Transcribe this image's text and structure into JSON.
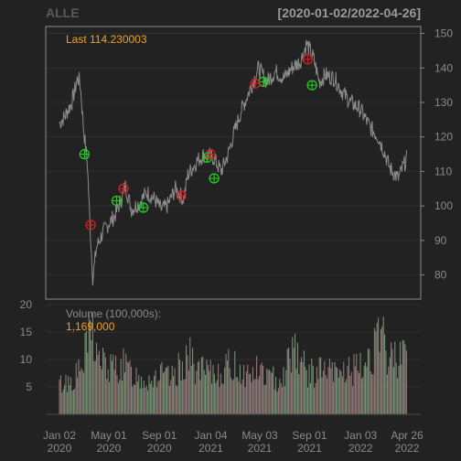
{
  "chart_data": [
    {
      "type": "line",
      "title": "ALLE",
      "date_range": "[2020-01-02/2022-04-26]",
      "last_label": "Last 114.230003",
      "ylim": [
        73,
        152
      ],
      "y_ticks": [
        80,
        90,
        100,
        110,
        120,
        130,
        140,
        150
      ],
      "x_ticks": [
        {
          "line1": "Jan 02",
          "line2": "2020",
          "date": "2020-01-02"
        },
        {
          "line1": "May 01",
          "line2": "2020",
          "date": "2020-05-01"
        },
        {
          "line1": "Sep 01",
          "line2": "2020",
          "date": "2020-09-01"
        },
        {
          "line1": "Jan 04",
          "line2": "2021",
          "date": "2021-01-04"
        },
        {
          "line1": "May 03",
          "line2": "2021",
          "date": "2021-05-03"
        },
        {
          "line1": "Sep 01",
          "line2": "2021",
          "date": "2021-09-01"
        },
        {
          "line1": "Jan 03",
          "line2": "2022",
          "date": "2022-01-03"
        },
        {
          "line1": "Apr 26",
          "line2": "2022",
          "date": "2022-04-26"
        }
      ],
      "price_series": [
        [
          "2020-01-02",
          124
        ],
        [
          "2020-01-15",
          126
        ],
        [
          "2020-02-01",
          130
        ],
        [
          "2020-02-15",
          137
        ],
        [
          "2020-02-21",
          136
        ],
        [
          "2020-03-01",
          122
        ],
        [
          "2020-03-10",
          112
        ],
        [
          "2020-03-16",
          95
        ],
        [
          "2020-03-23",
          79
        ],
        [
          "2020-04-01",
          88
        ],
        [
          "2020-04-15",
          92
        ],
        [
          "2020-05-01",
          95
        ],
        [
          "2020-05-15",
          97
        ],
        [
          "2020-06-01",
          102
        ],
        [
          "2020-06-10",
          106
        ],
        [
          "2020-06-25",
          99
        ],
        [
          "2020-07-15",
          101
        ],
        [
          "2020-08-01",
          104
        ],
        [
          "2020-08-20",
          102
        ],
        [
          "2020-09-05",
          99
        ],
        [
          "2020-09-20",
          100
        ],
        [
          "2020-10-10",
          105
        ],
        [
          "2020-10-30",
          102
        ],
        [
          "2020-11-09",
          109
        ],
        [
          "2020-12-01",
          113
        ],
        [
          "2020-12-20",
          115
        ],
        [
          "2021-01-10",
          114
        ],
        [
          "2021-01-29",
          110
        ],
        [
          "2021-02-15",
          115
        ],
        [
          "2021-03-01",
          121
        ],
        [
          "2021-03-20",
          128
        ],
        [
          "2021-04-10",
          134
        ],
        [
          "2021-04-30",
          140
        ],
        [
          "2021-05-20",
          136
        ],
        [
          "2021-06-10",
          139
        ],
        [
          "2021-07-01",
          137
        ],
        [
          "2021-07-20",
          140
        ],
        [
          "2021-08-10",
          142
        ],
        [
          "2021-08-25",
          147
        ],
        [
          "2021-09-10",
          143
        ],
        [
          "2021-09-25",
          136
        ],
        [
          "2021-10-10",
          138
        ],
        [
          "2021-11-01",
          137
        ],
        [
          "2021-11-20",
          133
        ],
        [
          "2021-12-10",
          130
        ],
        [
          "2022-01-03",
          128
        ],
        [
          "2022-01-25",
          123
        ],
        [
          "2022-02-15",
          120
        ],
        [
          "2022-03-01",
          116
        ],
        [
          "2022-03-15",
          111
        ],
        [
          "2022-04-05",
          108
        ],
        [
          "2022-04-26",
          114
        ]
      ],
      "buy_signals": [
        [
          "2020-03-03",
          115
        ],
        [
          "2020-05-20",
          101.5
        ],
        [
          "2020-07-24",
          99.5
        ],
        [
          "2020-12-26",
          114
        ],
        [
          "2021-01-12",
          108
        ],
        [
          "2021-05-12",
          136
        ],
        [
          "2021-09-07",
          135
        ]
      ],
      "sell_signals": [
        [
          "2020-03-18",
          94.5
        ],
        [
          "2020-06-06",
          105
        ],
        [
          "2020-10-24",
          103
        ],
        [
          "2021-01-03",
          115
        ],
        [
          "2021-04-22",
          135.5
        ],
        [
          "2021-08-28",
          142.5
        ]
      ],
      "colors": {
        "price": "#8c8c8c",
        "buy": "#22cc22",
        "sell": "#cc2222",
        "label_orange": "#f0a020",
        "frame": "#8a8a8a",
        "grid": "#2e2e2e"
      }
    },
    {
      "type": "bar",
      "title": "Volume (100,000s):",
      "last_value_label": "1,169,000",
      "ylim": [
        0,
        21
      ],
      "y_ticks": [
        5,
        10,
        15,
        20
      ],
      "volume_series": [
        [
          "2020-01-02",
          6
        ],
        [
          "2020-02-01",
          7
        ],
        [
          "2020-02-25",
          9
        ],
        [
          "2020-03-15",
          16
        ],
        [
          "2020-03-20",
          19
        ],
        [
          "2020-04-01",
          12
        ],
        [
          "2020-05-01",
          9
        ],
        [
          "2020-06-01",
          10
        ],
        [
          "2020-07-01",
          8
        ],
        [
          "2020-08-01",
          7
        ],
        [
          "2020-09-01",
          8
        ],
        [
          "2020-10-01",
          7
        ],
        [
          "2020-11-09",
          12
        ],
        [
          "2020-12-01",
          9
        ],
        [
          "2021-01-04",
          8
        ],
        [
          "2021-02-01",
          9
        ],
        [
          "2021-03-01",
          10
        ],
        [
          "2021-04-01",
          8
        ],
        [
          "2021-05-03",
          9
        ],
        [
          "2021-06-01",
          7
        ],
        [
          "2021-07-01",
          8
        ],
        [
          "2021-07-25",
          15
        ],
        [
          "2021-08-15",
          10
        ],
        [
          "2021-09-01",
          8
        ],
        [
          "2021-10-01",
          9
        ],
        [
          "2021-11-01",
          8
        ],
        [
          "2021-12-01",
          9
        ],
        [
          "2022-01-03",
          9
        ],
        [
          "2022-02-01",
          13
        ],
        [
          "2022-02-25",
          15
        ],
        [
          "2022-03-15",
          11
        ],
        [
          "2022-04-05",
          12
        ],
        [
          "2022-04-15",
          17
        ],
        [
          "2022-04-20",
          12
        ],
        [
          "2022-04-26",
          11.69
        ]
      ]
    }
  ]
}
